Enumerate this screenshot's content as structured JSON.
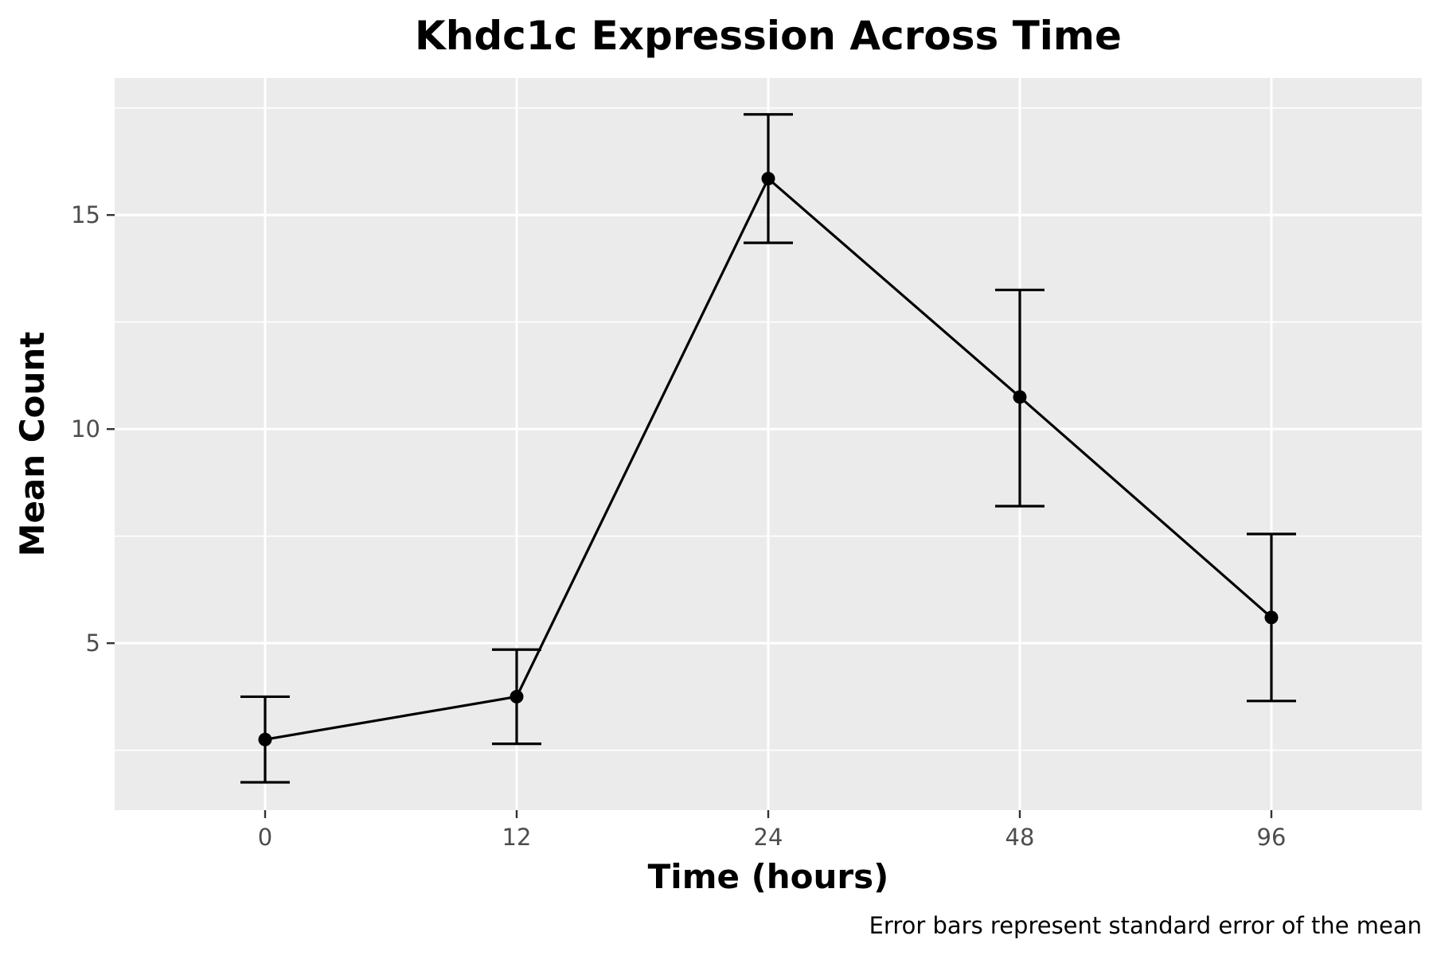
{
  "chart_data": {
    "type": "line",
    "title": "Khdc1c Expression Across Time",
    "xlabel": "Time (hours)",
    "ylabel": "Mean Count",
    "caption": "Error bars represent standard error of the mean",
    "categories": [
      "0",
      "12",
      "24",
      "48",
      "96"
    ],
    "values": [
      2.75,
      3.75,
      15.85,
      10.75,
      5.6
    ],
    "error_lower": [
      1.75,
      2.65,
      14.35,
      8.2,
      3.65
    ],
    "error_upper": [
      3.75,
      4.85,
      17.35,
      13.25,
      7.55
    ],
    "yticks": [
      5,
      10,
      15
    ],
    "ylim": [
      1.1,
      18.2
    ],
    "grid": true,
    "colors": {
      "panel": "#ebebeb",
      "grid": "#ffffff",
      "line": "#000000"
    }
  }
}
